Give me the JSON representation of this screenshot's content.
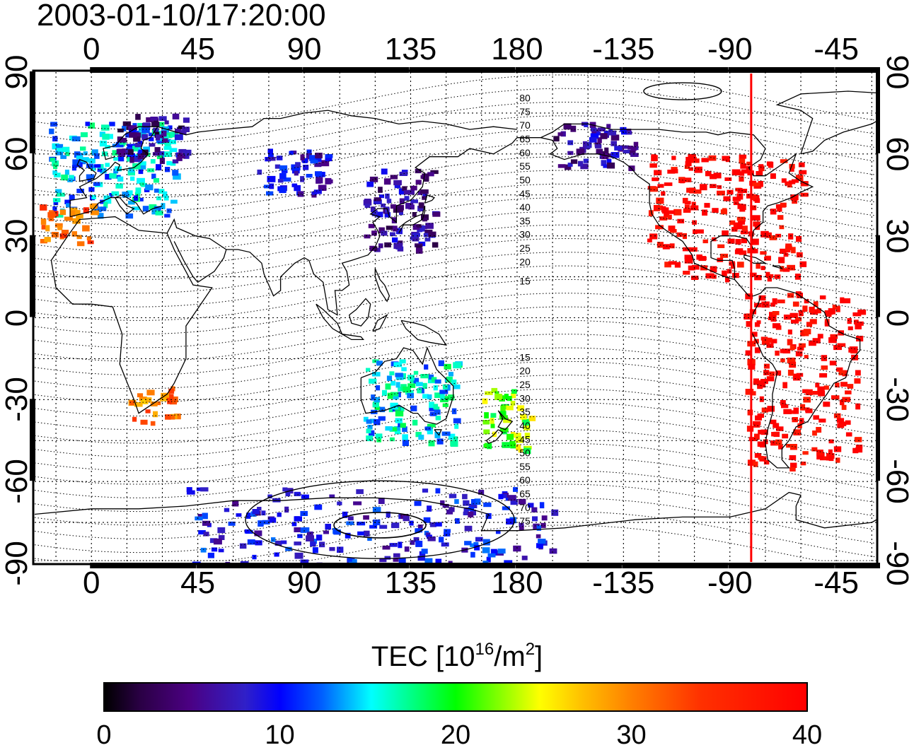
{
  "timestamp": "2003-01-10/17:20:00",
  "map": {
    "lon_ticks": [
      "0",
      "45",
      "90",
      "135",
      "180",
      "-135",
      "-90",
      "-45"
    ],
    "lon_values": [
      0,
      45,
      90,
      135,
      180,
      225,
      270,
      315
    ],
    "lat_ticks": [
      "90",
      "60",
      "30",
      "0",
      "-30",
      "-60",
      "-90"
    ],
    "lat_values": [
      90,
      60,
      30,
      0,
      -30,
      -60,
      -90
    ],
    "lon_range": [
      -24,
      332
    ],
    "lat_range": [
      -90,
      90
    ],
    "contour_labels": [
      "80",
      "75",
      "70",
      "65",
      "60",
      "55",
      "50",
      "45",
      "40",
      "35",
      "30",
      "25",
      "20",
      "15",
      "15",
      "20",
      "25",
      "30",
      "35",
      "40",
      "45",
      "50",
      "55",
      "60",
      "65",
      "70",
      "75"
    ],
    "terminator_longitude": -81,
    "terminator_color": "#ff0000"
  },
  "colorbar": {
    "title_prefix": "TEC  [10",
    "title_exp1": "16",
    "title_mid": "/m",
    "title_exp2": "2",
    "title_suffix": "]",
    "ticks": [
      "0",
      "10",
      "20",
      "30",
      "40"
    ],
    "tick_values": [
      0,
      10,
      20,
      30,
      40
    ],
    "range": [
      0,
      40
    ]
  },
  "tec_clusters": [
    {
      "region": "Europe",
      "lon": [
        -18,
        35
      ],
      "lat": [
        38,
        72
      ],
      "tec": 14
    },
    {
      "region": "Northern Europe",
      "lon": [
        10,
        40
      ],
      "lat": [
        58,
        75
      ],
      "tec": 5
    },
    {
      "region": "Iberia",
      "lon": [
        -22,
        0
      ],
      "lat": [
        28,
        42
      ],
      "tec": 32
    },
    {
      "region": "Siberia",
      "lon": [
        70,
        100
      ],
      "lat": [
        45,
        62
      ],
      "tec": 8
    },
    {
      "region": "East Asia",
      "lon": [
        115,
        145
      ],
      "lat": [
        25,
        55
      ],
      "tec": 6
    },
    {
      "region": "South Africa",
      "lon": [
        15,
        35
      ],
      "lat": [
        -38,
        -25
      ],
      "tec": 30
    },
    {
      "region": "Australia",
      "lon": [
        115,
        155
      ],
      "lat": [
        -45,
        -15
      ],
      "tec": 15
    },
    {
      "region": "New Zealand",
      "lon": [
        165,
        185
      ],
      "lat": [
        -48,
        -25
      ],
      "tec": 22
    },
    {
      "region": "Alaska",
      "lon": [
        195,
        230
      ],
      "lat": [
        55,
        72
      ],
      "tec": 6
    },
    {
      "region": "North America",
      "lon": [
        235,
        300
      ],
      "lat": [
        15,
        60
      ],
      "tec": 40
    },
    {
      "region": "South America",
      "lon": [
        275,
        325
      ],
      "lat": [
        -55,
        10
      ],
      "tec": 40
    },
    {
      "region": "Antarctica",
      "lon": [
        40,
        195
      ],
      "lat": [
        -90,
        -62
      ],
      "tec": 9
    }
  ]
}
